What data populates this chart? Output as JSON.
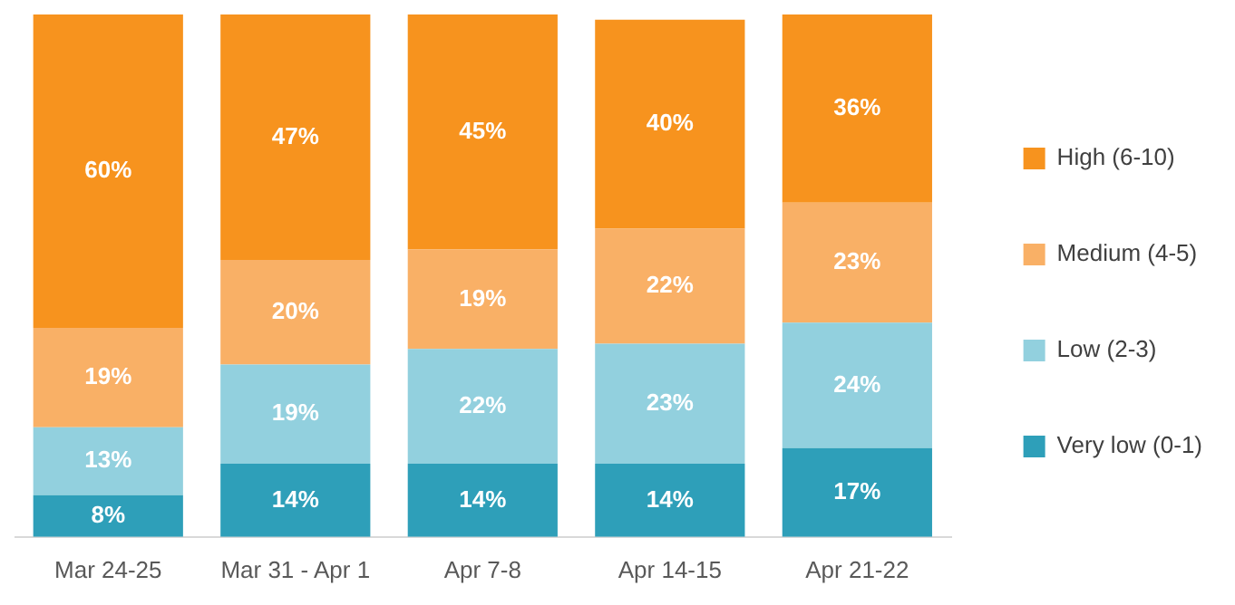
{
  "chart_data": {
    "type": "bar",
    "stacked": true,
    "legend": "right",
    "tick_labels": "x",
    "categories": [
      "Mar 24-25",
      "Mar 31 - Apr 1",
      "Apr 7-8",
      "Apr 14-15",
      "Apr 21-22"
    ],
    "series": [
      {
        "name": "Very low (0-1)",
        "color": "#2e9fb9",
        "values": [
          8,
          14,
          14,
          14,
          17
        ],
        "value_labels": [
          "8%",
          "14%",
          "14%",
          "14%",
          "17%"
        ]
      },
      {
        "name": "Low (2-3)",
        "color": "#92d0de",
        "values": [
          13,
          19,
          22,
          23,
          24
        ],
        "value_labels": [
          "13%",
          "19%",
          "22%",
          "23%",
          "24%"
        ]
      },
      {
        "name": "Medium (4-5)",
        "color": "#f9b066",
        "values": [
          19,
          20,
          19,
          22,
          23
        ],
        "value_labels": [
          "19%",
          "20%",
          "19%",
          "22%",
          "23%"
        ]
      },
      {
        "name": "High (6-10)",
        "color": "#f7931e",
        "values": [
          60,
          47,
          45,
          40,
          36
        ],
        "value_labels": [
          "60%",
          "47%",
          "45%",
          "40%",
          "36%"
        ]
      }
    ]
  }
}
